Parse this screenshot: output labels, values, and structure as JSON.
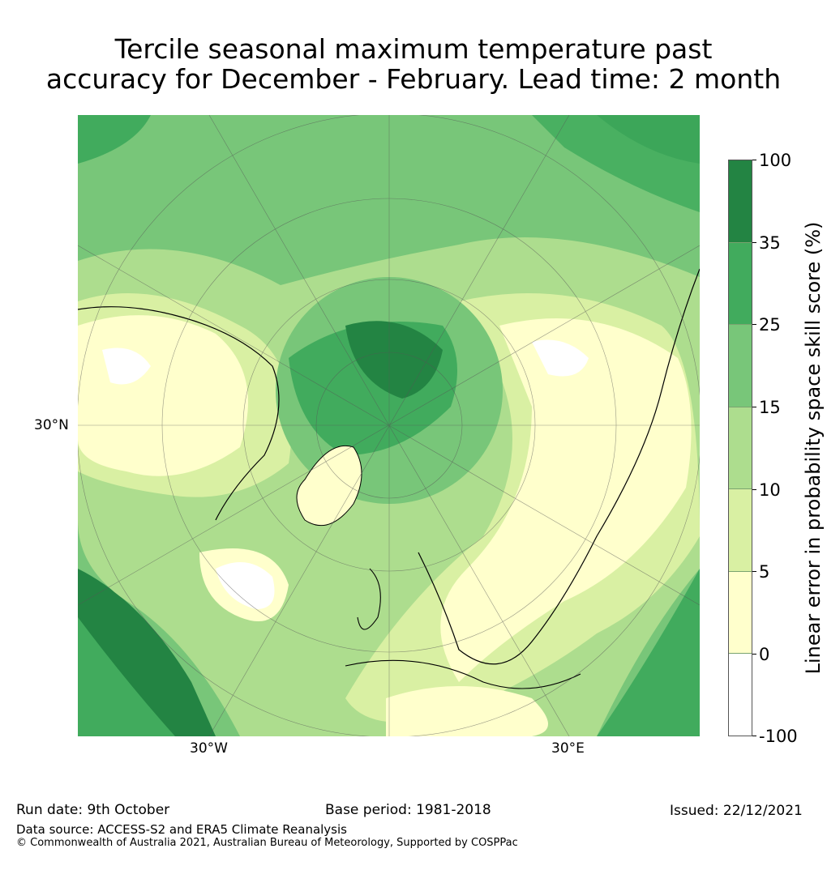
{
  "title": {
    "line1": "Tercile seasonal maximum temperature past",
    "line2": "accuracy for December - February. Lead time: 2 month"
  },
  "map": {
    "lat_label": "30°N",
    "lon_labels": [
      "30°W",
      "30°E"
    ]
  },
  "colorbar": {
    "label": "Linear error in probability space skill score (%)",
    "ticks": [
      "100",
      "35",
      "25",
      "15",
      "10",
      "5",
      "0",
      "-100"
    ],
    "colors": [
      "#238443",
      "#41ab5d",
      "#78c679",
      "#addd8e",
      "#d9f0a3",
      "#ffffcc",
      "#ffffff"
    ]
  },
  "footer": {
    "run_date": "Run date: 9th October",
    "base_period": "Base period: 1981-2018",
    "issued": "Issued: 22/12/2021",
    "data_source": "Data source: ACCESS-S2 and ERA5 Climate Reanalysis",
    "copyright": "© Commonwealth of Australia 2021, Australian Bureau of Meteorology, Supported by COSPPac"
  }
}
